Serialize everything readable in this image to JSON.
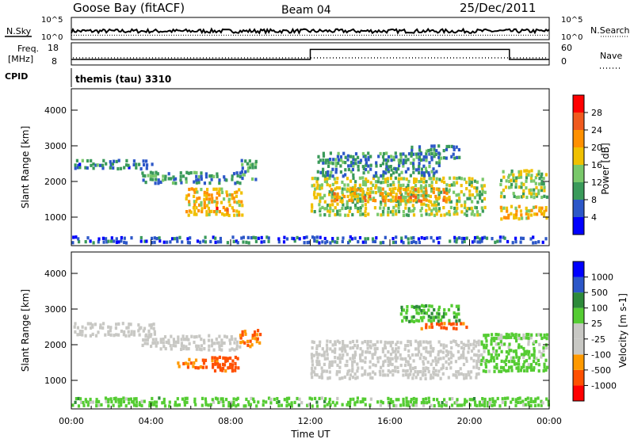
{
  "header": {
    "station": "Goose Bay (fitACF)",
    "beam": "Beam 04",
    "date": "25/Dec/2011"
  },
  "noise_panel": {
    "left_label": "N.Sky",
    "right_label": "N.Search",
    "left_ticks": [
      "10^5",
      "10^0"
    ],
    "right_ticks": [
      "10^5",
      "10^0"
    ]
  },
  "freq_panel": {
    "left_label_line1": "Freq.",
    "left_label_line2": "[MHz]",
    "right_label": "Nave",
    "left_ticks": [
      "18",
      "8"
    ],
    "right_ticks": [
      "60",
      "0"
    ]
  },
  "cpid": {
    "label": "CPID",
    "text": "themis (tau) 3310"
  },
  "colors": {
    "ground_scatter": "#c8c8c4",
    "power_scale": [
      "#0000ff",
      "#2c57c8",
      "#3a9a5a",
      "#79c86a",
      "#f0c000",
      "#ff9000",
      "#f05a1e",
      "#ff0000"
    ],
    "velocity_scale": [
      "#ff0000",
      "#ff5000",
      "#ff9900",
      "#c8c8c4",
      "#c8c8c4",
      "#55cc33",
      "#2d8a3a",
      "#2c57c8",
      "#0000ff"
    ]
  },
  "chart_data": [
    {
      "type": "heatmap",
      "panel": "power",
      "ylabel": "Slant Range [km]",
      "ylim": [
        200,
        4600
      ],
      "yticks": [
        "1000",
        "2000",
        "3000",
        "4000"
      ],
      "xlim": [
        0,
        24
      ],
      "colorbar_label": "Power [dB]",
      "colorbar_ticks": [
        "4",
        "8",
        "12",
        "16",
        "20",
        "24",
        "28"
      ],
      "clim": [
        0,
        32
      ],
      "regions": [
        {
          "t": [
            0.1,
            4.2
          ],
          "r": [
            2300,
            2600
          ],
          "v": 8
        },
        {
          "t": [
            3.5,
            8.5
          ],
          "r": [
            1900,
            2250
          ],
          "v": 9
        },
        {
          "t": [
            5.7,
            8.6
          ],
          "r": [
            1000,
            1800
          ],
          "v": 19
        },
        {
          "t": [
            7.2,
            7.9
          ],
          "r": [
            1050,
            1250
          ],
          "v": 24
        },
        {
          "t": [
            8.5,
            9.3
          ],
          "r": [
            2000,
            2600
          ],
          "v": 10
        },
        {
          "t": [
            12.0,
            20.8
          ],
          "r": [
            1000,
            2100
          ],
          "v": 15
        },
        {
          "t": [
            13.0,
            19.0
          ],
          "r": [
            1400,
            1800
          ],
          "v": 20
        },
        {
          "t": [
            12.3,
            18.5
          ],
          "r": [
            2100,
            2800
          ],
          "v": 9
        },
        {
          "t": [
            17.0,
            19.5
          ],
          "r": [
            2600,
            3000
          ],
          "v": 8
        },
        {
          "t": [
            21.5,
            23.9
          ],
          "r": [
            900,
            1300
          ],
          "v": 20
        },
        {
          "t": [
            21.5,
            23.9
          ],
          "r": [
            1500,
            2300
          ],
          "v": 14
        },
        {
          "t": [
            0,
            24
          ],
          "r": [
            230,
            450
          ],
          "v": 6
        }
      ]
    },
    {
      "type": "heatmap",
      "panel": "velocity",
      "ylabel": "Slant Range [km]",
      "xlabel": "Time UT",
      "xticks": [
        "00:00",
        "04:00",
        "08:00",
        "12:00",
        "16:00",
        "20:00",
        "00:00"
      ],
      "xlim": [
        0,
        24
      ],
      "ylim": [
        200,
        4600
      ],
      "yticks": [
        "1000",
        "2000",
        "3000",
        "4000"
      ],
      "colorbar_label": "Velocity [m s-1]",
      "colorbar_ticks": [
        "1000",
        "500",
        "100",
        "25",
        "-25",
        "-100",
        "-500",
        "-1000"
      ],
      "regions": [
        {
          "t": [
            0.1,
            4.2
          ],
          "r": [
            2200,
            2600
          ],
          "kind": "ground"
        },
        {
          "t": [
            3.5,
            8.5
          ],
          "r": [
            1800,
            2250
          ],
          "kind": "ground"
        },
        {
          "t": [
            5.3,
            6.8
          ],
          "r": [
            1300,
            1600
          ],
          "v": -150
        },
        {
          "t": [
            7.0,
            8.4
          ],
          "r": [
            1200,
            1650
          ],
          "v": -250
        },
        {
          "t": [
            8.4,
            9.5
          ],
          "r": [
            1900,
            2400
          ],
          "v": -80
        },
        {
          "t": [
            12.0,
            20.5
          ],
          "r": [
            1000,
            2100
          ],
          "kind": "ground"
        },
        {
          "t": [
            17.5,
            20.0
          ],
          "r": [
            2400,
            2600
          ],
          "v": -150
        },
        {
          "t": [
            16.5,
            19.5
          ],
          "r": [
            2600,
            3100
          ],
          "v": 80
        },
        {
          "t": [
            20.5,
            23.9
          ],
          "r": [
            1200,
            2300
          ],
          "v": 50
        },
        {
          "t": [
            0,
            24
          ],
          "r": [
            230,
            500
          ],
          "v": 60
        }
      ]
    }
  ],
  "line_data": {
    "noise_series": [
      {
        "name": "N.Sky",
        "level": 0.35
      },
      {
        "name": "N.Search",
        "level": 0.2
      }
    ],
    "freq_series": {
      "name": "Freq.",
      "segments": [
        {
          "t": [
            0,
            12
          ],
          "v": 10.5
        },
        {
          "t": [
            12,
            22
          ],
          "v": 15
        },
        {
          "t": [
            22,
            24
          ],
          "v": 10.5
        }
      ]
    },
    "nave_series": {
      "name": "Nave",
      "value": 11
    }
  }
}
